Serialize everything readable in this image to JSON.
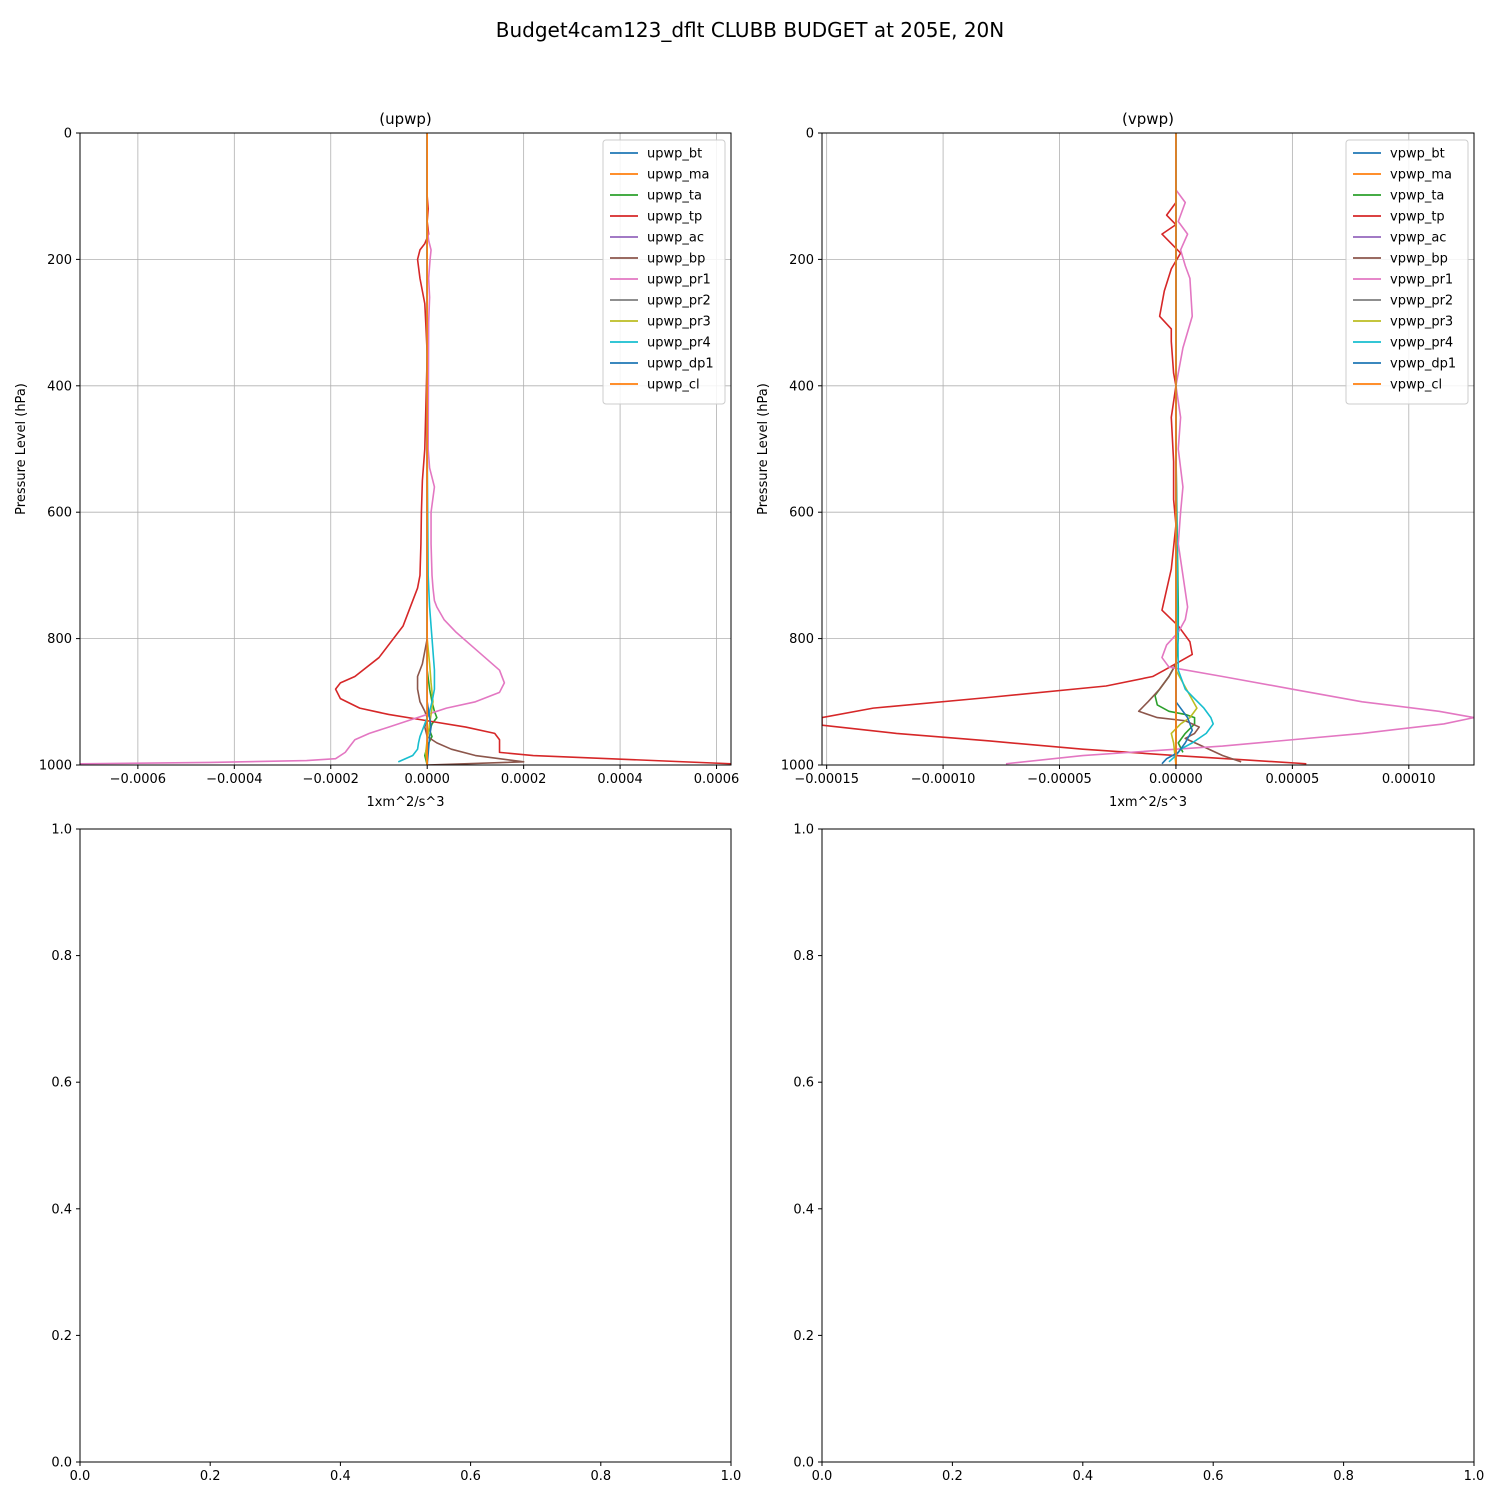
{
  "figure_title": "Budget4cam123_dflt CLUBB BUDGET at 205E, 20N",
  "chart_data": [
    {
      "type": "line",
      "title": "(upwp)",
      "xlabel": "1xm^2/s^3",
      "ylabel": "Pressure Level (hPa)",
      "xlim": [
        -0.00072,
        0.00063
      ],
      "ylim": [
        1000,
        0
      ],
      "xticks": [
        -0.0006,
        -0.0004,
        -0.0002,
        0.0,
        0.0002,
        0.0004,
        0.0006
      ],
      "xtick_labels": [
        "−0.0006",
        "−0.0004",
        "−0.0002",
        "0.0000",
        "0.0002",
        "0.0004",
        "0.0006"
      ],
      "yticks": [
        0,
        200,
        400,
        600,
        800,
        1000
      ],
      "ytick_labels": [
        "0",
        "200",
        "400",
        "600",
        "800",
        "1000"
      ],
      "grid": true,
      "legend_position": "top-right",
      "series": [
        {
          "name": "upwp_bt",
          "color": "#1f77b4",
          "x": [
            0,
            0,
            0
          ],
          "y": [
            0,
            500,
            1000
          ]
        },
        {
          "name": "upwp_ma",
          "color": "#ff7f0e",
          "x": [
            0,
            0,
            0
          ],
          "y": [
            0,
            500,
            1000
          ]
        },
        {
          "name": "upwp_ta",
          "color": "#2ca02c",
          "x": [
            0,
            0,
            0,
            5e-06,
            1e-05,
            1.5e-05,
            2e-05,
            1e-05,
            5e-06,
            1e-05,
            0,
            -5e-06,
            0
          ],
          "y": [
            0,
            500,
            850,
            880,
            900,
            915,
            925,
            935,
            945,
            955,
            970,
            985,
            1000
          ]
        },
        {
          "name": "upwp_tp",
          "color": "#d62728",
          "x": [
            0,
            0,
            2e-06,
            0,
            3e-06,
            -5e-06,
            -1.5e-05,
            -2e-05,
            -1.5e-05,
            -5e-06,
            -3e-06,
            0,
            -5e-06,
            -1e-05,
            -1.2e-05,
            -1.3e-05,
            -1.5e-05,
            -2e-05,
            -3e-05,
            -5e-05,
            -0.0001,
            -0.00015,
            -0.00018,
            -0.00019,
            -0.00018,
            -0.00014,
            -8e-05,
            0,
            8e-05,
            0.00014,
            0.00015,
            0.00015,
            0.00022,
            0.00063
          ],
          "y": [
            0,
            100,
            120,
            140,
            160,
            175,
            185,
            200,
            230,
            270,
            300,
            350,
            500,
            550,
            600,
            650,
            700,
            720,
            740,
            780,
            830,
            860,
            870,
            880,
            895,
            910,
            920,
            930,
            940,
            950,
            960,
            980,
            985,
            998
          ]
        },
        {
          "name": "upwp_ac",
          "color": "#9467bd",
          "x": [
            0,
            0,
            0
          ],
          "y": [
            0,
            500,
            1000
          ]
        },
        {
          "name": "upwp_bp",
          "color": "#8c564b",
          "x": [
            0,
            0,
            0,
            -5e-06,
            -1e-05,
            -2e-05,
            -2e-05,
            -1.5e-05,
            -5e-06,
            0,
            -5e-06,
            0,
            2e-05,
            5e-05,
            0.0001,
            0.00015,
            0.0002,
            0
          ],
          "y": [
            0,
            500,
            800,
            820,
            840,
            860,
            880,
            900,
            915,
            925,
            940,
            955,
            965,
            975,
            985,
            990,
            995,
            1000
          ]
        },
        {
          "name": "upwp_pr1",
          "color": "#e377c2",
          "x": [
            0,
            0,
            3e-06,
            8e-06,
            6e-06,
            3e-06,
            5e-06,
            3e-06,
            2e-06,
            5e-06,
            1.5e-05,
            8e-06,
            8e-06,
            1e-05,
            1.2e-05,
            1.5e-05,
            2e-05,
            3.5e-05,
            6e-05,
            9e-05,
            0.00012,
            0.00015,
            0.00016,
            0.00015,
            0.0001,
            4e-05,
            0,
            -4e-05,
            -8e-05,
            -0.00012,
            -0.00015,
            -0.00016,
            -0.00017,
            -0.00019,
            -0.00025,
            -0.00045,
            -0.00072
          ],
          "y": [
            0,
            150,
            170,
            185,
            200,
            230,
            260,
            300,
            500,
            530,
            560,
            600,
            650,
            700,
            720,
            740,
            750,
            770,
            790,
            810,
            830,
            850,
            870,
            885,
            900,
            910,
            920,
            930,
            940,
            950,
            960,
            970,
            980,
            990,
            993,
            996,
            998
          ]
        },
        {
          "name": "upwp_pr2",
          "color": "#7f7f7f",
          "x": [
            0,
            0,
            0
          ],
          "y": [
            0,
            500,
            1000
          ]
        },
        {
          "name": "upwp_pr3",
          "color": "#bcbd22",
          "x": [
            0,
            0,
            0,
            5e-06,
            8e-06,
            1.2e-05,
            8e-06,
            4e-06,
            0,
            -3e-06,
            0
          ],
          "y": [
            0,
            500,
            800,
            840,
            870,
            900,
            920,
            940,
            960,
            980,
            1000
          ]
        },
        {
          "name": "upwp_pr4",
          "color": "#17becf",
          "x": [
            0,
            0,
            2e-06,
            5e-06,
            1e-05,
            1.5e-05,
            1.5e-05,
            1e-05,
            5e-06,
            0,
            -5e-06,
            -1e-05,
            -1.5e-05,
            -1.8e-05,
            -2e-05,
            -3e-05,
            -6e-05
          ],
          "y": [
            0,
            500,
            700,
            750,
            800,
            850,
            880,
            900,
            915,
            925,
            935,
            945,
            955,
            965,
            975,
            985,
            995
          ]
        },
        {
          "name": "upwp_dp1",
          "color": "#1f77b4",
          "x": [
            0,
            0,
            5e-06,
            8e-06,
            5e-06,
            0
          ],
          "y": [
            0,
            900,
            925,
            940,
            955,
            1000
          ]
        },
        {
          "name": "upwp_cl",
          "color": "#ff7f0e",
          "x": [
            0,
            0,
            0
          ],
          "y": [
            0,
            500,
            1000
          ]
        }
      ]
    },
    {
      "type": "line",
      "title": "(vpwp)",
      "xlabel": "1xm^2/s^3",
      "ylabel": "Pressure Level (hPa)",
      "xlim": [
        -0.000152,
        0.000128
      ],
      "ylim": [
        1000,
        0
      ],
      "xticks": [
        -0.00015,
        -0.0001,
        -5e-05,
        0.0,
        5e-05,
        0.0001
      ],
      "xtick_labels": [
        "−0.00015",
        "−0.00010",
        "−0.00005",
        "0.00000",
        "0.00005",
        "0.00010"
      ],
      "yticks": [
        0,
        200,
        400,
        600,
        800,
        1000
      ],
      "ytick_labels": [
        "0",
        "200",
        "400",
        "600",
        "800",
        "1000"
      ],
      "grid": true,
      "legend_position": "top-right",
      "series": [
        {
          "name": "vpwp_bt",
          "color": "#1f77b4",
          "x": [
            0,
            0,
            0
          ],
          "y": [
            0,
            500,
            1000
          ]
        },
        {
          "name": "vpwp_ma",
          "color": "#ff7f0e",
          "x": [
            0,
            0,
            0
          ],
          "y": [
            0,
            500,
            1000
          ]
        },
        {
          "name": "vpwp_ta",
          "color": "#2ca02c",
          "x": [
            0,
            0,
            1e-06,
            1e-06,
            0,
            -3e-06,
            -6e-06,
            -9e-06,
            -8e-06,
            -3e-06,
            4e-06,
            8e-06,
            8e-06,
            4e-06,
            1e-06,
            3e-06
          ],
          "y": [
            0,
            500,
            750,
            800,
            840,
            860,
            875,
            890,
            905,
            915,
            920,
            925,
            935,
            950,
            965,
            980
          ]
        },
        {
          "name": "vpwp_tp",
          "color": "#d62728",
          "x": [
            0,
            0,
            0,
            -4e-06,
            0,
            -6e-06,
            2e-06,
            -2e-06,
            -5e-06,
            -6e-06,
            -7e-06,
            -2e-06,
            -2e-06,
            -1e-06,
            0,
            -2e-06,
            -1e-06,
            -1e-06,
            0,
            -2e-06,
            -6e-06,
            1e-06,
            6e-06,
            7e-06,
            -5e-06,
            -1e-05,
            -3e-05,
            -8e-05,
            -0.00013,
            -0.000152,
            -0.000152,
            -0.00012,
            -8e-05,
            -4e-05,
            0,
            3e-05,
            5.6e-05
          ],
          "y": [
            0,
            95,
            110,
            130,
            145,
            160,
            190,
            215,
            250,
            270,
            290,
            310,
            330,
            380,
            400,
            450,
            520,
            580,
            620,
            690,
            755,
            780,
            805,
            825,
            850,
            860,
            875,
            893,
            910,
            925,
            937,
            950,
            962,
            975,
            985,
            992,
            998
          ]
        },
        {
          "name": "vpwp_ac",
          "color": "#9467bd",
          "x": [
            0,
            0,
            0
          ],
          "y": [
            0,
            500,
            1000
          ]
        },
        {
          "name": "vpwp_bp",
          "color": "#8c564b",
          "x": [
            0,
            0,
            0,
            -3e-06,
            -7e-06,
            -1.2e-05,
            -1.6e-05,
            -8e-06,
            4e-06,
            1e-05,
            8e-06,
            4e-06,
            1e-05,
            2e-05,
            2.8e-05
          ],
          "y": [
            0,
            500,
            840,
            860,
            880,
            900,
            915,
            925,
            930,
            940,
            950,
            958,
            968,
            985,
            995
          ]
        },
        {
          "name": "vpwp_pr1",
          "color": "#e377c2",
          "x": [
            0,
            0,
            4e-06,
            1e-06,
            5e-06,
            2e-06,
            4e-06,
            6e-06,
            7e-06,
            3e-06,
            0,
            2e-06,
            1e-06,
            3e-06,
            2e-06,
            1e-06,
            3e-06,
            5e-06,
            4e-06,
            1e-06,
            -4e-06,
            -6e-06,
            -3e-06,
            2e-05,
            5e-05,
            8e-05,
            0.000113,
            0.000128,
            0.000115,
            8e-05,
            2e-05,
            -4e-05,
            -7.3e-05
          ],
          "y": [
            0,
            90,
            110,
            140,
            160,
            185,
            210,
            230,
            290,
            340,
            400,
            450,
            500,
            560,
            600,
            650,
            700,
            750,
            770,
            790,
            810,
            830,
            845,
            860,
            880,
            900,
            915,
            925,
            935,
            950,
            970,
            985,
            998
          ]
        },
        {
          "name": "vpwp_pr2",
          "color": "#7f7f7f",
          "x": [
            0,
            0,
            0
          ],
          "y": [
            0,
            500,
            1000
          ]
        },
        {
          "name": "vpwp_pr3",
          "color": "#bcbd22",
          "x": [
            0,
            0,
            0,
            3e-06,
            6e-06,
            9e-06,
            6e-06,
            2e-06,
            -2e-06,
            -1e-06,
            0
          ],
          "y": [
            0,
            500,
            850,
            870,
            890,
            910,
            925,
            935,
            950,
            965,
            1000
          ]
        },
        {
          "name": "vpwp_pr4",
          "color": "#17becf",
          "x": [
            0,
            0,
            1e-06,
            4e-06,
            8e-06,
            1.2e-05,
            1.5e-05,
            1.6e-05,
            1.3e-05,
            7e-06,
            2e-06,
            0,
            -3e-06
          ],
          "y": [
            0,
            500,
            850,
            880,
            895,
            910,
            925,
            935,
            950,
            965,
            975,
            985,
            995
          ]
        },
        {
          "name": "vpwp_dp1",
          "color": "#1f77b4",
          "x": [
            0,
            0,
            0,
            5e-06,
            7e-06,
            4e-06,
            1e-06,
            -4e-06,
            -6e-06
          ],
          "y": [
            0,
            500,
            900,
            925,
            945,
            965,
            980,
            990,
            998
          ]
        },
        {
          "name": "vpwp_cl",
          "color": "#ff7f0e",
          "x": [
            0,
            0,
            0
          ],
          "y": [
            0,
            500,
            1000
          ]
        }
      ]
    },
    {
      "type": "line",
      "xlim": [
        0,
        1
      ],
      "ylim": [
        0,
        1
      ],
      "xticks": [
        0.0,
        0.2,
        0.4,
        0.6,
        0.8,
        1.0
      ],
      "xtick_labels": [
        "0.0",
        "0.2",
        "0.4",
        "0.6",
        "0.8",
        "1.0"
      ],
      "yticks": [
        0.0,
        0.2,
        0.4,
        0.6,
        0.8,
        1.0
      ],
      "ytick_labels": [
        "0.0",
        "0.2",
        "0.4",
        "0.6",
        "0.8",
        "1.0"
      ],
      "grid": false,
      "series": []
    },
    {
      "type": "line",
      "xlim": [
        0,
        1
      ],
      "ylim": [
        0,
        1
      ],
      "xticks": [
        0.0,
        0.2,
        0.4,
        0.6,
        0.8,
        1.0
      ],
      "xtick_labels": [
        "0.0",
        "0.2",
        "0.4",
        "0.6",
        "0.8",
        "1.0"
      ],
      "yticks": [
        0.0,
        0.2,
        0.4,
        0.6,
        0.8,
        1.0
      ],
      "ytick_labels": [
        "0.0",
        "0.2",
        "0.4",
        "0.6",
        "0.8",
        "1.0"
      ],
      "grid": false,
      "series": []
    }
  ]
}
